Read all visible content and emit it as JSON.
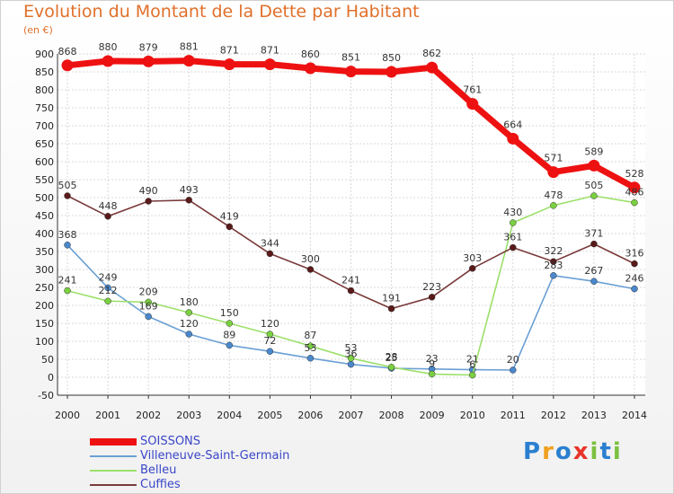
{
  "chart_data": {
    "type": "line",
    "title": "Evolution du Montant de la Dette par Habitant",
    "subtitle": "(en €)",
    "xlabel": "",
    "ylabel": "",
    "ylim": [
      -50,
      900
    ],
    "yticks": [
      -50,
      0,
      50,
      100,
      150,
      200,
      250,
      300,
      350,
      400,
      450,
      500,
      550,
      600,
      650,
      700,
      750,
      800,
      850,
      900
    ],
    "x": [
      "2000",
      "2001",
      "2002",
      "2003",
      "2004",
      "2005",
      "2006",
      "2007",
      "2008",
      "2009",
      "2010",
      "2011",
      "2012",
      "2013",
      "2014"
    ],
    "grid": true,
    "legend_position": "bottom-left",
    "series": [
      {
        "name": "SOISSONS",
        "color": "#ee1111",
        "marker_color": "#ee1111",
        "line_width": "thick",
        "values": [
          868,
          880,
          879,
          881,
          871,
          871,
          860,
          851,
          850,
          862,
          761,
          664,
          571,
          589,
          528
        ],
        "labels": [
          "868",
          "880",
          "879",
          "881",
          "871",
          "871",
          "860",
          "851",
          "850",
          "862",
          "761",
          "664",
          "571",
          "589",
          "528"
        ]
      },
      {
        "name": "Villeneuve-Saint-Germain",
        "color": "#6a9fd4",
        "marker_color": "#4a88cc",
        "line_width": "thin",
        "values": [
          368,
          249,
          169,
          120,
          89,
          72,
          53,
          36,
          25,
          23,
          21,
          20,
          283,
          267,
          246
        ],
        "labels": [
          "368",
          "249",
          "169",
          "120",
          "89",
          "72",
          "53",
          "36",
          "25",
          "23",
          "21",
          "20",
          "283",
          "267",
          "246"
        ]
      },
      {
        "name": "Belleu",
        "color": "#9ce06a",
        "marker_color": "#7ad040",
        "line_width": "thin",
        "values": [
          241,
          212,
          209,
          180,
          150,
          120,
          87,
          53,
          28,
          9,
          6,
          430,
          478,
          505,
          486
        ],
        "labels": [
          "241",
          "212",
          "209",
          "180",
          "150",
          "120",
          "87",
          "53",
          "28",
          "9",
          "6",
          "430",
          "478",
          "505",
          "486"
        ]
      },
      {
        "name": "Cuffies",
        "color": "#7a3a3a",
        "marker_color": "#5a1a1a",
        "line_width": "thin",
        "values": [
          505,
          448,
          490,
          493,
          419,
          344,
          300,
          241,
          191,
          223,
          303,
          361,
          322,
          371,
          316
        ],
        "labels": [
          "505",
          "448",
          "490",
          "493",
          "419",
          "344",
          "300",
          "241",
          "191",
          "223",
          "303",
          "361",
          "322",
          "371",
          "316"
        ]
      }
    ]
  },
  "logo": {
    "letters": [
      "P",
      "r",
      "o",
      "x",
      "i",
      "t",
      "i"
    ],
    "colors": [
      "#2a7fd0",
      "#f0a020",
      "#2a7fd0",
      "#e8342a",
      "#7cc040",
      "#2a7fd0",
      "#7cc040"
    ]
  }
}
